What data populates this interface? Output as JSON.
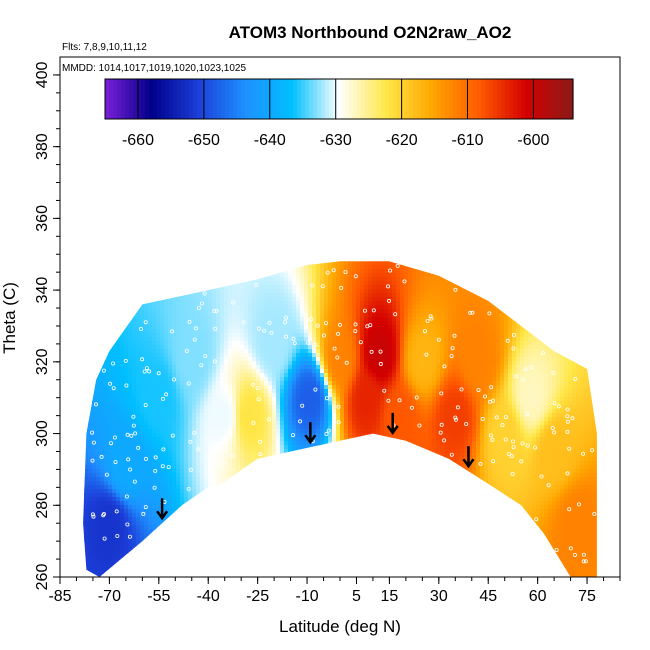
{
  "chart_data": {
    "type": "heatmap",
    "title": "ATOM3 Northbound O2N2raw_AO2",
    "annotations": [
      "Flts: 7,8,9,10,11,12",
      "MMDD: 1014,1017,1019,1020,1023,1025"
    ],
    "xlabel": "Latitude (deg N)",
    "ylabel": "Theta (C)",
    "xlim": [
      -85,
      85
    ],
    "ylim": [
      260,
      405
    ],
    "x_ticks": [
      "-85",
      "-70",
      "-55",
      "-40",
      "-25",
      "-10",
      "5",
      "15",
      "30",
      "45",
      "60",
      "75"
    ],
    "y_ticks": [
      "260",
      "280",
      "300",
      "320",
      "340",
      "360",
      "380",
      "400"
    ],
    "colorbar": {
      "range": [
        -665,
        -594
      ],
      "ticks": [
        "-660",
        "-650",
        "-640",
        "-630",
        "-620",
        "-610",
        "-600"
      ],
      "colors": [
        "#7b1fd8",
        "#00008b",
        "#1c3fd9",
        "#1e90ff",
        "#00bfff",
        "#ffffff",
        "#ffe84a",
        "#ffa500",
        "#ff5a00",
        "#d40000",
        "#8b1a1a"
      ]
    },
    "arrows_latitude": [
      -54,
      -9,
      16,
      39
    ],
    "boundary_lower": [
      [
        -73,
        260
      ],
      [
        -60,
        270
      ],
      [
        -48,
        280
      ],
      [
        -40,
        285
      ],
      [
        -36,
        286
      ],
      [
        -25,
        293
      ],
      [
        -10,
        296
      ],
      [
        5,
        299
      ],
      [
        10,
        300
      ],
      [
        20,
        298
      ],
      [
        33,
        293
      ],
      [
        45,
        286
      ],
      [
        55,
        280
      ],
      [
        62,
        272
      ],
      [
        70,
        260
      ],
      [
        78,
        260
      ]
    ],
    "boundary_upper": [
      [
        -77,
        262
      ],
      [
        -78,
        275
      ],
      [
        -77,
        300
      ],
      [
        -74,
        315
      ],
      [
        -70,
        323
      ],
      [
        -60,
        336
      ],
      [
        -45,
        339
      ],
      [
        -25,
        343
      ],
      [
        -10,
        347
      ],
      [
        0,
        348
      ],
      [
        15,
        348
      ],
      [
        30,
        344
      ],
      [
        45,
        337
      ],
      [
        55,
        330
      ],
      [
        65,
        323
      ],
      [
        75,
        318
      ],
      [
        78,
        300
      ],
      [
        78,
        260
      ]
    ],
    "field_samples": [
      {
        "lat": -70,
        "theta": 275,
        "value": -652
      },
      {
        "lat": -65,
        "theta": 290,
        "value": -640
      },
      {
        "lat": -55,
        "theta": 310,
        "value": -636
      },
      {
        "lat": -45,
        "theta": 320,
        "value": -633
      },
      {
        "lat": -35,
        "theta": 305,
        "value": -630
      },
      {
        "lat": -28,
        "theta": 305,
        "value": -622
      },
      {
        "lat": -20,
        "theta": 325,
        "value": -632
      },
      {
        "lat": -9,
        "theta": 310,
        "value": -648
      },
      {
        "lat": 0,
        "theta": 320,
        "value": -612
      },
      {
        "lat": 8,
        "theta": 310,
        "value": -604
      },
      {
        "lat": 12,
        "theta": 322,
        "value": -600
      },
      {
        "lat": 18,
        "theta": 305,
        "value": -608
      },
      {
        "lat": 25,
        "theta": 320,
        "value": -617
      },
      {
        "lat": 35,
        "theta": 305,
        "value": -606
      },
      {
        "lat": 42,
        "theta": 320,
        "value": -612
      },
      {
        "lat": 50,
        "theta": 300,
        "value": -620
      },
      {
        "lat": 58,
        "theta": 310,
        "value": -627
      },
      {
        "lat": 65,
        "theta": 295,
        "value": -618
      },
      {
        "lat": 72,
        "theta": 275,
        "value": -612
      }
    ]
  }
}
